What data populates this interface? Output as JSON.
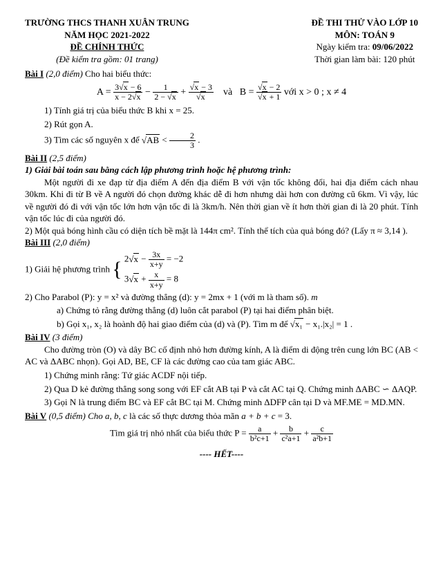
{
  "header": {
    "school": "TRƯỜNG THCS THANH XUÂN TRUNG",
    "year": "NĂM HỌC 2021-2022",
    "official": "ĐỀ CHÍNH THỨC",
    "subtitle": "(Đề kiểm tra gồm: 01 trang)",
    "exam": "ĐỀ THI THỬ VÀO LỚP 10",
    "subject": "MÔN: TOÁN 9",
    "date": "Ngày kiểm tra: 09/06/2022",
    "duration": "Thời gian làm bài: 120 phút"
  },
  "b1": {
    "title": "Bài I",
    "pts": " (2,0 điểm)  ",
    "intro": "Cho hai biểu thức:",
    "cond": "  với  x > 0 ;  x ≠ 4",
    "q1": "1) Tính giá trị của biểu thức B khi x = 25.",
    "q2": "2) Rút gọn A.",
    "q3a": "3) Tìm các số nguyên x để ",
    "q3b": "."
  },
  "b2": {
    "title": "Bài II",
    "pts": " (2,5 điểm)",
    "h1": "1) Giải bài toán sau bằng cách lập phương trình hoặc hệ phương trình:",
    "p1": "Một người đi xe đạp từ địa điểm A đến địa điểm B với vận tốc không đổi, hai địa điểm cách nhau 30km. Khi đi từ B về A người đó chọn đường khác dễ đi hơn nhưng dài hơn con đường cũ 6km. Vì vậy, lúc về người đó đi với vận tốc lớn hơn vận tốc đi là 3km/h. Nên thời gian về ít hơn thời gian đi là 20 phút. Tính vận tốc lúc đi của người đó.",
    "p2": "2) Một quả bóng hình cầu có diện tích bề mặt là 144π cm². Tính thể tích của quả bóng đó? (Lấy π ≈ 3,14 )."
  },
  "b3": {
    "title": "Bài III",
    "pts": " (2,0 điểm)",
    "q1": "1) Giải hệ phương trình  ",
    "q2": "2) Cho Parabol (P): y = x² và đường thẳng (d): y = 2mx + 1  (với m là tham số).",
    "q2a": "a) Chứng tỏ rằng đường thẳng (d) luôn cắt parabol (P) tại hai điểm phân biệt.",
    "q2b": "b) Gọi x₁, x₂ là hoành độ hai giao điểm của (d) và (P). Tìm m để "
  },
  "b4": {
    "title": "Bài IV",
    "pts": " (3 điểm)",
    "p1": "Cho đường tròn (O) và dây BC cố định nhỏ hơn đường kính, A là điểm di động trên cung lớn BC (AB < AC và ΔABC nhọn). Gọi AD, BE, CF là các đường cao của tam giác ABC.",
    "q1": "1) Chứng minh rằng: Tứ giác ACDF nội tiếp.",
    "q2": "2) Qua D kẻ đường thẳng song song với EF cắt AB tại P và cắt AC tại Q. Chứng minh ΔABC ∽ ΔAQP.",
    "q3": "3) Gọi N là trung điểm BC và EF cắt BC tại M. Chứng minh ΔDFP cân tại D và MF.ME = MD.MN."
  },
  "b5": {
    "title": "Bài V",
    "pts": " (0,5 điểm) ",
    "intro": "Cho a, b, c là các số thực dương thỏa mãn a + b + c = 3.",
    "task": "Tìm giá trị nhỏ nhất của biểu thức  P = "
  },
  "footer": "---- HẾT----"
}
